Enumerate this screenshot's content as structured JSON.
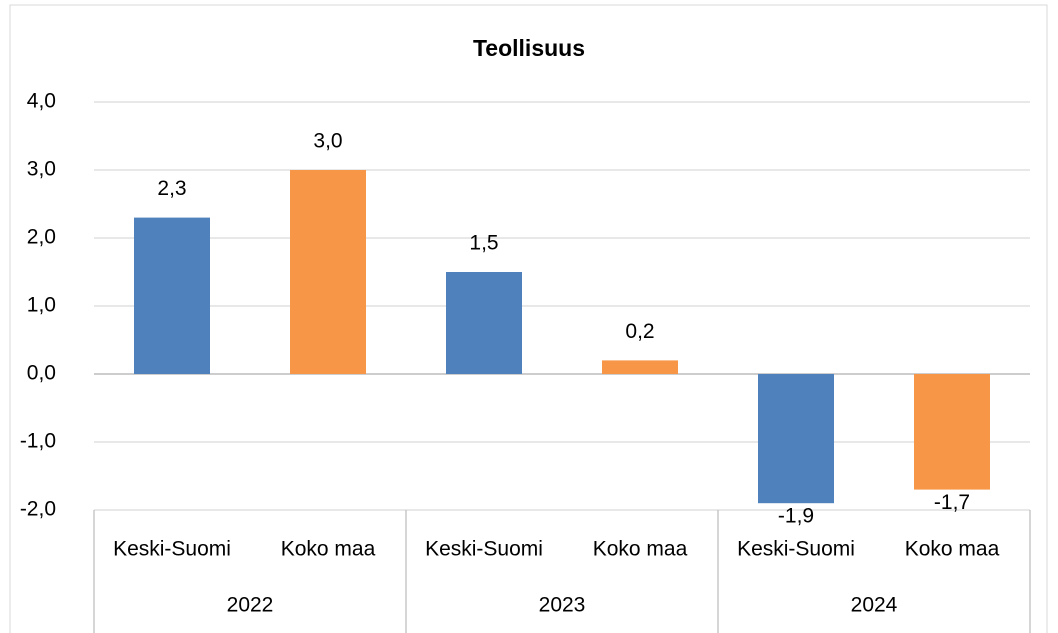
{
  "chart_data": {
    "type": "bar",
    "title": "Teollisuus",
    "categories": [
      "Keski-Suomi",
      "Koko maa",
      "Keski-Suomi",
      "Koko maa",
      "Keski-Suomi",
      "Koko maa"
    ],
    "groups": [
      "2022",
      "2023",
      "2024"
    ],
    "values": [
      2.3,
      3.0,
      1.5,
      0.2,
      -1.9,
      -1.7
    ],
    "value_labels": [
      "2,3",
      "3,0",
      "1,5",
      "0,2",
      "-1,9",
      "-1,7"
    ],
    "colors": [
      "#4f81bd",
      "#f79646",
      "#4f81bd",
      "#f79646",
      "#4f81bd",
      "#f79646"
    ],
    "ylim": [
      -2,
      4
    ],
    "yticks": [
      {
        "value": -2,
        "label": "-2,0"
      },
      {
        "value": -1,
        "label": "-1,0"
      },
      {
        "value": 0,
        "label": "0,0"
      },
      {
        "value": 1,
        "label": "1,0"
      },
      {
        "value": 2,
        "label": "2,0"
      },
      {
        "value": 3,
        "label": "3,0"
      },
      {
        "value": 4,
        "label": "4,0"
      }
    ],
    "grid": true
  }
}
